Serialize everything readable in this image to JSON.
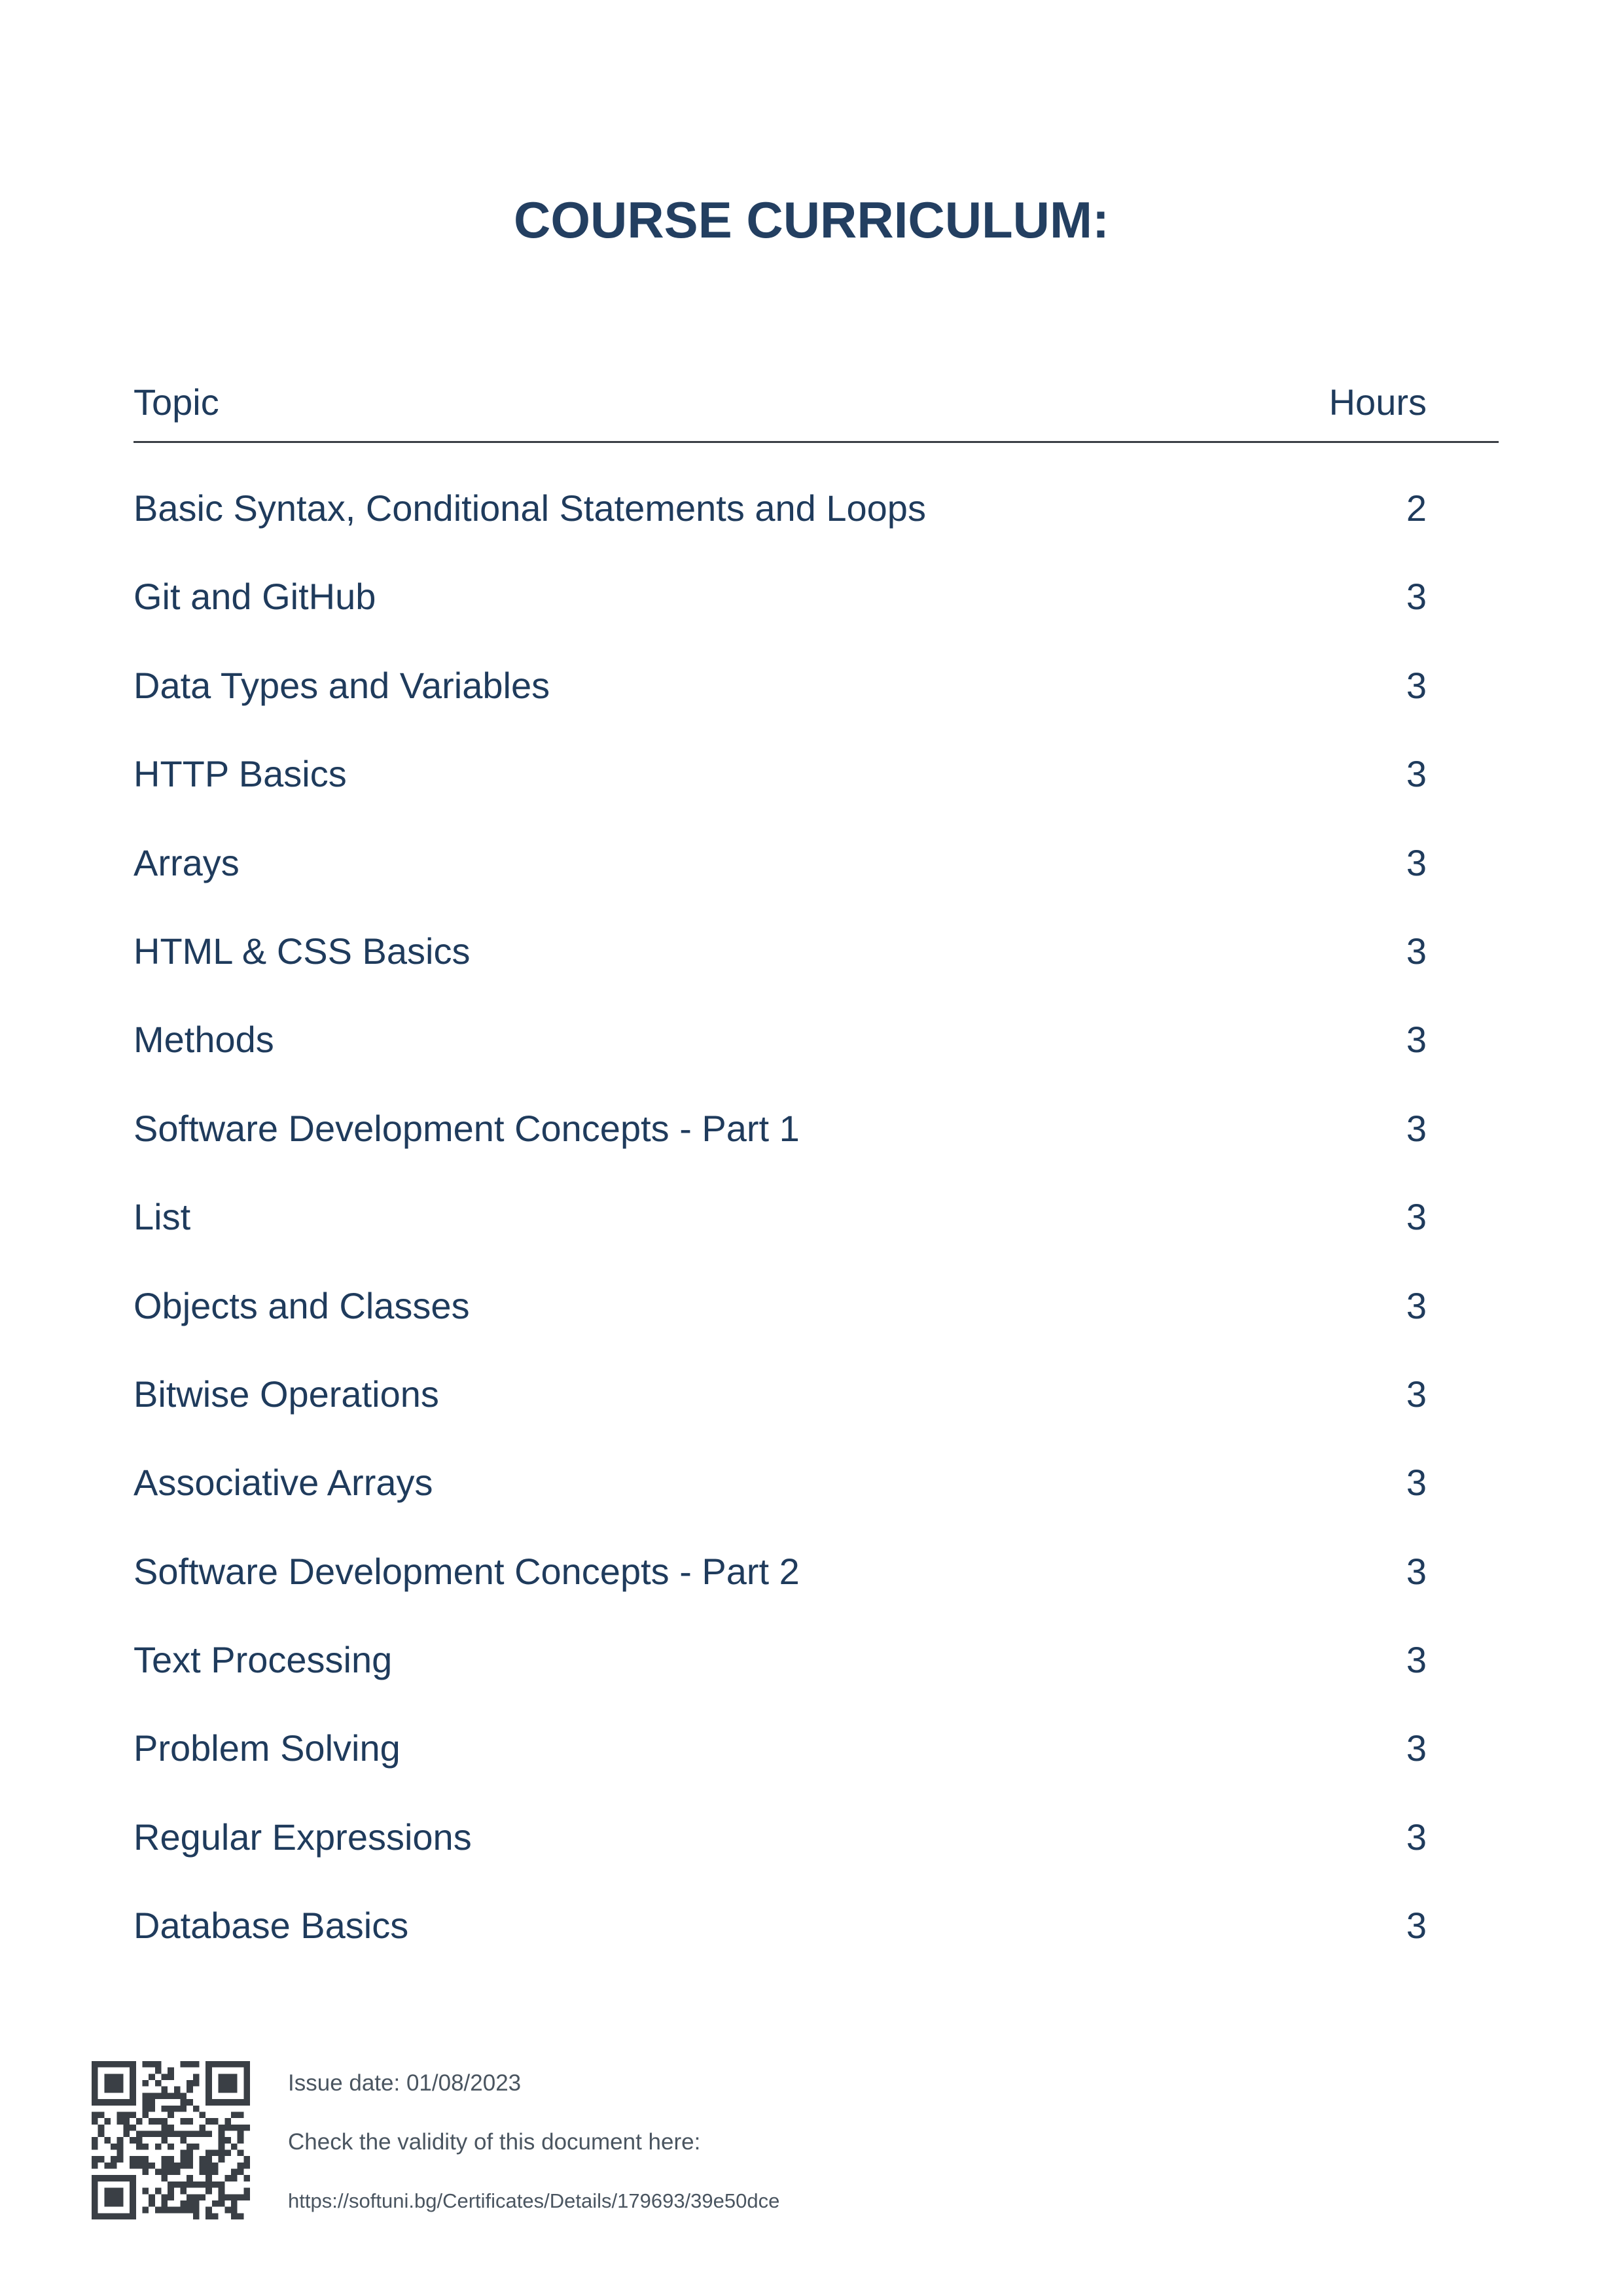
{
  "document": {
    "title": "COURSE CURRICULUM:"
  },
  "table": {
    "headers": {
      "topic": "Topic",
      "hours": "Hours"
    },
    "rows": [
      {
        "topic": "Basic Syntax, Conditional Statements and Loops",
        "hours": "2"
      },
      {
        "topic": "Git and GitHub",
        "hours": "3"
      },
      {
        "topic": "Data Types and Variables",
        "hours": "3"
      },
      {
        "topic": "HTTP Basics",
        "hours": "3"
      },
      {
        "topic": "Arrays",
        "hours": "3"
      },
      {
        "topic": "HTML & CSS Basics",
        "hours": "3"
      },
      {
        "topic": "Methods",
        "hours": "3"
      },
      {
        "topic": "Software Development Concepts - Part 1",
        "hours": "3"
      },
      {
        "topic": "List",
        "hours": "3"
      },
      {
        "topic": "Objects and Classes",
        "hours": "3"
      },
      {
        "topic": "Bitwise Operations",
        "hours": "3"
      },
      {
        "topic": "Associative Arrays",
        "hours": "3"
      },
      {
        "topic": "Software Development Concepts - Part 2",
        "hours": "3"
      },
      {
        "topic": "Text Processing",
        "hours": "3"
      },
      {
        "topic": "Problem Solving",
        "hours": "3"
      },
      {
        "topic": "Regular Expressions",
        "hours": "3"
      },
      {
        "topic": "Database Basics",
        "hours": "3"
      }
    ]
  },
  "footer": {
    "qr_icon": "qr-code-icon",
    "issue_date": "Issue date: 01/08/2023",
    "validity_text": "Check the validity of this document here:",
    "validity_url": "https://softuni.bg/Certificates/Details/179693/39e50dce"
  },
  "colors": {
    "title": "#233f61",
    "text": "#1f3b5c",
    "rule": "#3a3f45",
    "footer_text": "#4a5560",
    "qr": "#3a3f45"
  }
}
